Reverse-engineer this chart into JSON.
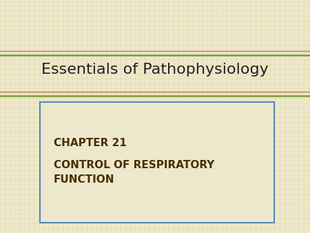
{
  "bg_color": "#ede8cc",
  "title_text": "Essentials of Pathophysiology",
  "title_color": "#222222",
  "title_fontsize": 16,
  "chapter_label": "CHAPTER 21",
  "chapter_text": "CONTROL OF RESPIRATORY\nFUNCTION",
  "chapter_color": "#4a2e00",
  "chapter_fontsize": 11,
  "chapter_label_fontsize": 11,
  "line1_color": "#cc7744",
  "line2_color": "#7a9a3a",
  "box_edge_color": "#5588bb",
  "box_bg_color": "#ede8cc",
  "texture_h_color": "#d4c88a",
  "texture_v_color": "#d4c88a"
}
